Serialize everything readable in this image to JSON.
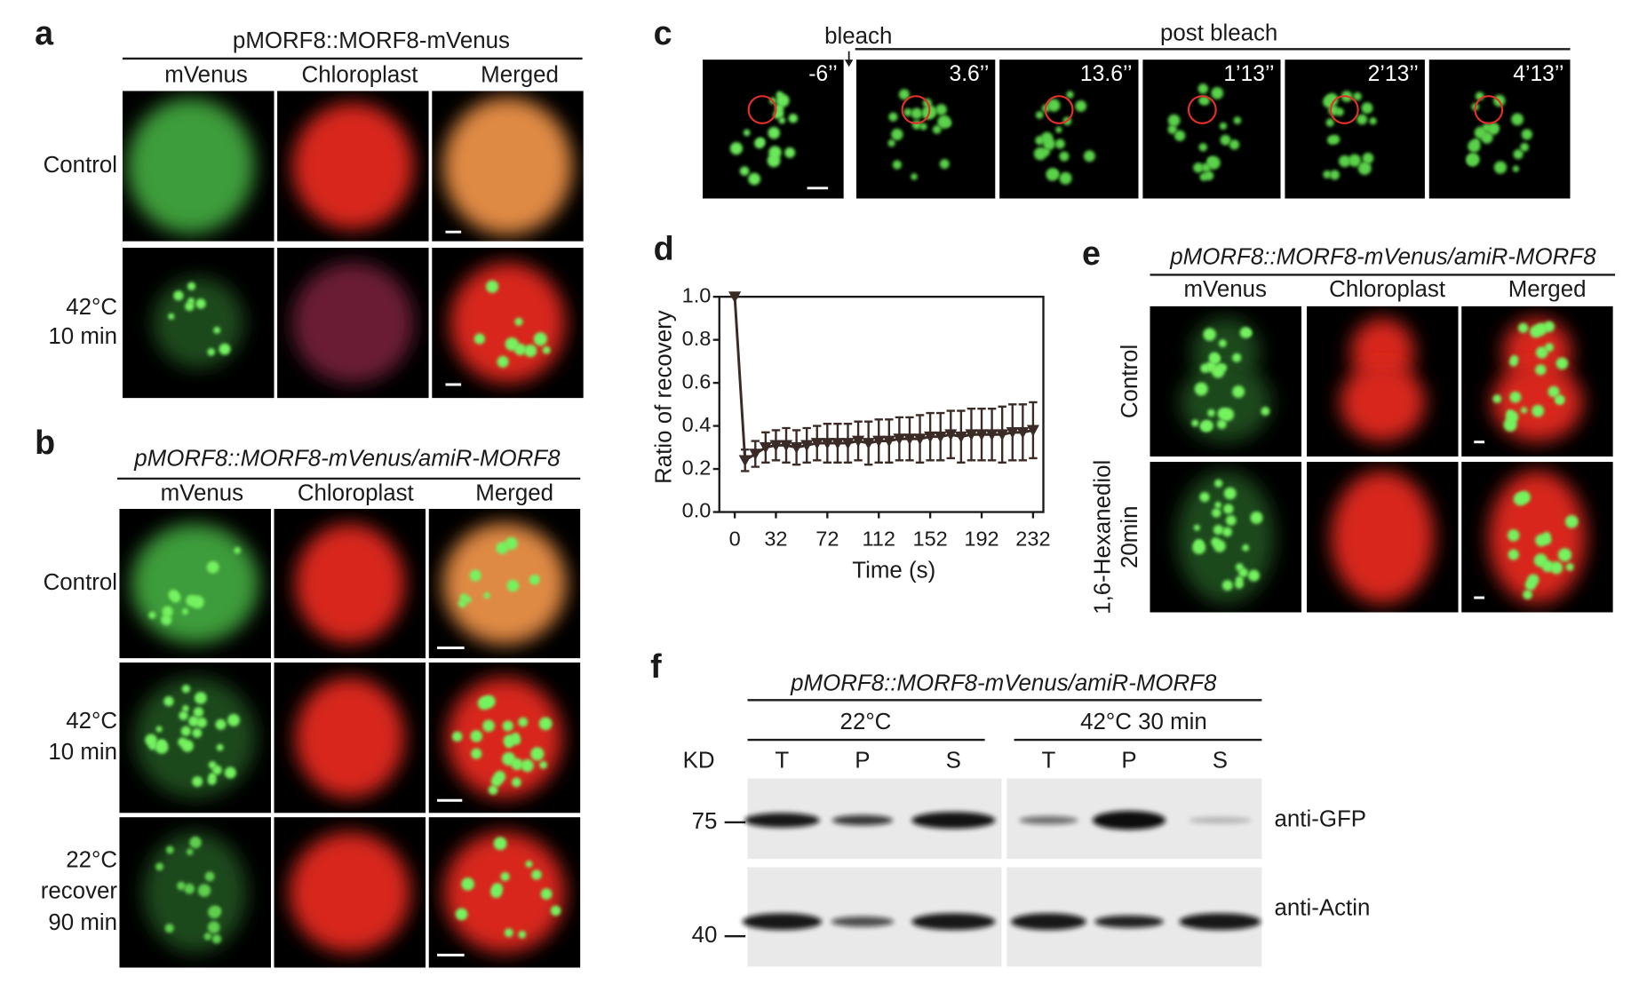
{
  "panel_a": {
    "label": "a",
    "title": "pMORF8::MORF8-mVenus",
    "columns": [
      "mVenus",
      "Chloroplast",
      "Merged"
    ],
    "rows": [
      [
        "Control"
      ],
      [
        "42°C",
        "10 min"
      ]
    ]
  },
  "panel_b": {
    "label": "b",
    "title": "pMORF8::MORF8-mVenus/amiR-MORF8",
    "columns": [
      "mVenus",
      "Chloroplast",
      "Merged"
    ],
    "rows": [
      [
        "Control"
      ],
      [
        "42°C",
        "10 min"
      ],
      [
        "22°C",
        "recover",
        "90 min"
      ]
    ]
  },
  "panel_c": {
    "label": "c",
    "bleach": "bleach",
    "post_bleach": "post bleach",
    "times": [
      "-6’’",
      "3.6’’",
      "13.6’’",
      "1’13’’",
      "2’13’’",
      "4’13’’"
    ]
  },
  "panel_d": {
    "label": "d",
    "chart_data": {
      "type": "line",
      "x_label": "Time (s)",
      "y_label": "Ratio of recovery",
      "color": "#3b2b27",
      "x": [
        0,
        8,
        16,
        24,
        32,
        40,
        48,
        56,
        64,
        72,
        80,
        88,
        96,
        104,
        112,
        120,
        128,
        136,
        144,
        152,
        160,
        168,
        176,
        184,
        192,
        200,
        208,
        216,
        224,
        232
      ],
      "values": [
        1.0,
        0.24,
        0.27,
        0.3,
        0.31,
        0.31,
        0.3,
        0.31,
        0.32,
        0.32,
        0.32,
        0.32,
        0.33,
        0.32,
        0.33,
        0.33,
        0.34,
        0.34,
        0.34,
        0.35,
        0.35,
        0.36,
        0.35,
        0.36,
        0.36,
        0.36,
        0.36,
        0.37,
        0.37,
        0.38
      ],
      "errors": [
        0,
        0.05,
        0.06,
        0.07,
        0.07,
        0.08,
        0.08,
        0.08,
        0.08,
        0.09,
        0.09,
        0.09,
        0.09,
        0.1,
        0.1,
        0.1,
        0.1,
        0.1,
        0.11,
        0.11,
        0.11,
        0.11,
        0.12,
        0.12,
        0.12,
        0.12,
        0.13,
        0.13,
        0.13,
        0.13
      ],
      "xlim": [
        -12,
        240
      ],
      "xticks": [
        0,
        32,
        72,
        112,
        152,
        192,
        232
      ],
      "ylim": [
        0,
        1
      ],
      "yticks": [
        {
          "value": 0,
          "label": "0.0"
        },
        0.2,
        0.4,
        0.6,
        0.8,
        {
          "value": 1,
          "label": "1.0"
        }
      ]
    }
  },
  "panel_e": {
    "label": "e",
    "title": "pMORF8::MORF8-mVenus/amiR-MORF8",
    "columns": [
      "mVenus",
      "Chloroplast",
      "Merged"
    ],
    "rows": [
      [
        "Control"
      ],
      [
        "1,6-Hexanediol",
        "20min"
      ]
    ]
  },
  "panel_f": {
    "label": "f",
    "title": "pMORF8::MORF8-mVenus/amiR-MORF8",
    "conditions": [
      "22°C",
      "42°C 30 min"
    ],
    "kd_label": "KD",
    "lanes": [
      "T",
      "P",
      "S",
      "T",
      "P",
      "S"
    ],
    "markers": [
      "75",
      "40"
    ],
    "antibodies": [
      "anti-GFP",
      "anti-Actin"
    ]
  }
}
